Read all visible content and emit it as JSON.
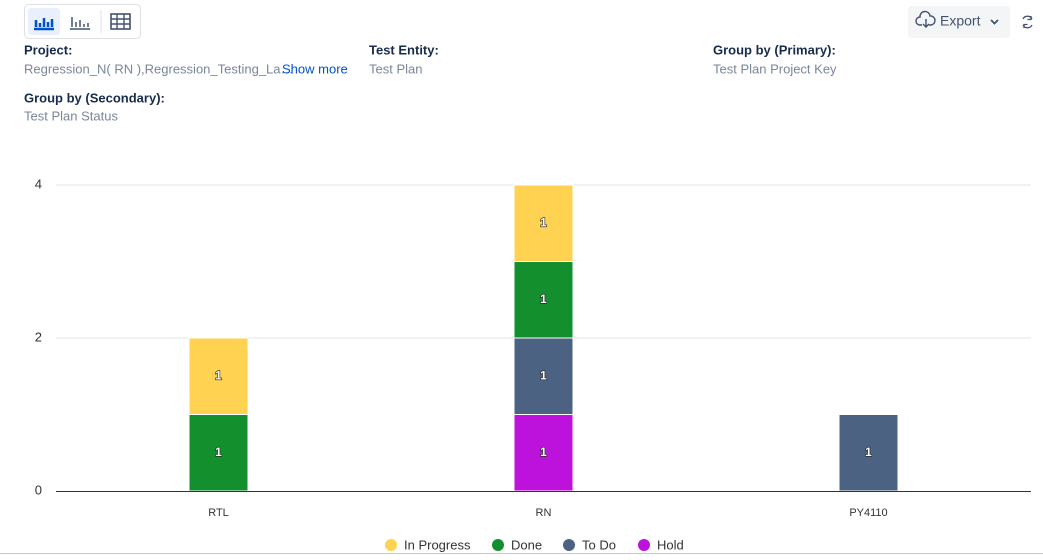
{
  "toolbar": {
    "export": "Export"
  },
  "filters": [
    {
      "label": "Project:",
      "value": "Regression_N( RN ),Regression_Testing_La…",
      "link": "Show more"
    },
    {
      "label": "Test Entity:",
      "value": "Test Plan"
    },
    {
      "label": "Group by (Primary):",
      "value": "Test Plan Project Key"
    },
    {
      "label": "Group by (Secondary):",
      "value": "Test Plan Status"
    }
  ],
  "chart_data": {
    "type": "stacked-bar",
    "categories": [
      "RTL",
      "RN",
      "PY4110"
    ],
    "series": [
      {
        "name": "In Progress",
        "color": "#ffd351",
        "values": [
          1,
          1,
          null
        ]
      },
      {
        "name": "Done",
        "color": "#148f2e",
        "values": [
          1,
          1,
          null
        ]
      },
      {
        "name": "To Do",
        "color": "#4b6282",
        "values": [
          null,
          1,
          1
        ]
      },
      {
        "name": "Hold",
        "color": "#bd12dc",
        "values": [
          null,
          1,
          null
        ]
      }
    ],
    "ylim": [
      0,
      4
    ],
    "yticks": [
      0,
      2,
      4
    ],
    "grid": true
  }
}
